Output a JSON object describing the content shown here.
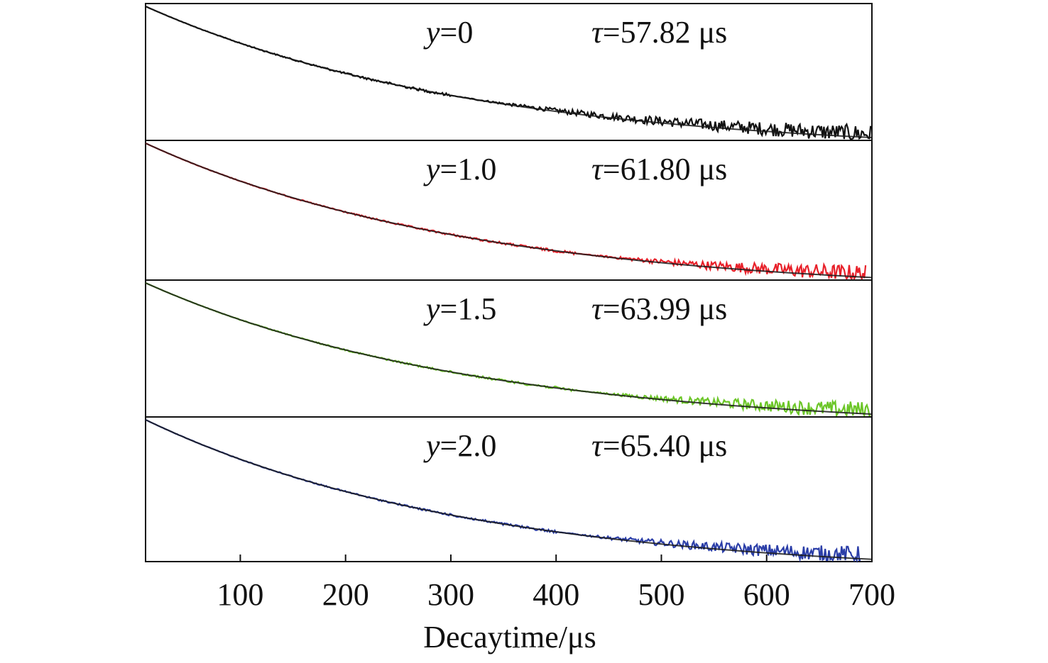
{
  "chart_data": {
    "type": "line",
    "xlabel": "Decaytime/μs",
    "xlim": [
      10,
      700
    ],
    "xticks": [
      100,
      200,
      300,
      400,
      500,
      600,
      700
    ],
    "ylabel": "",
    "log_scale_y": true,
    "panels": [
      {
        "label_var": "y",
        "label_val": "=0",
        "tau_sym": "τ",
        "tau_text": "=57.82 μs",
        "color": "#111111",
        "tau": 57.82,
        "x_end": 700,
        "noise_start": 300
      },
      {
        "label_var": "y",
        "label_val": "=1.0",
        "tau_sym": "τ",
        "tau_text": "=61.80 μs",
        "color": "#e8212a",
        "tau": 61.8,
        "x_end": 695,
        "noise_start": 420
      },
      {
        "label_var": "y",
        "label_val": "=1.5",
        "tau_sym": "τ",
        "tau_text": "=63.99 μs",
        "color": "#6cc628",
        "tau": 63.99,
        "x_end": 700,
        "noise_start": 420
      },
      {
        "label_var": "y",
        "label_val": "=2.0",
        "tau_sym": "τ",
        "tau_text": "=65.40 μs",
        "color": "#2b3ea8",
        "tau": 65.4,
        "x_end": 690,
        "noise_start": 400
      }
    ]
  }
}
